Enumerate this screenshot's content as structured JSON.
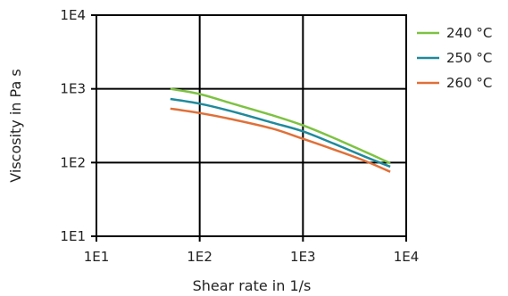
{
  "chart_data": {
    "type": "line",
    "xlabel": "Shear rate in 1/s",
    "ylabel": "Viscosity in Pa s",
    "x_scale": "log",
    "y_scale": "log",
    "xlim": [
      10,
      10000
    ],
    "ylim": [
      10,
      10000
    ],
    "x_ticks": [
      "1E1",
      "1E2",
      "1E3",
      "1E4"
    ],
    "y_ticks": [
      "1E1",
      "1E2",
      "1E3",
      "1E4"
    ],
    "grid": true,
    "legend_position": "right",
    "series": [
      {
        "name": "240 °C",
        "color": "#7dc242",
        "x": [
          52,
          100,
          200,
          500,
          1000,
          2000,
          4000,
          7000
        ],
        "y": [
          1000,
          850,
          640,
          440,
          320,
          215,
          140,
          98
        ]
      },
      {
        "name": "250 °C",
        "color": "#1f8a9c",
        "x": [
          52,
          100,
          200,
          500,
          1000,
          2000,
          4000,
          7000
        ],
        "y": [
          730,
          630,
          500,
          350,
          265,
          180,
          120,
          88
        ]
      },
      {
        "name": "260 °C",
        "color": "#e07038",
        "x": [
          52,
          100,
          200,
          500,
          1000,
          2000,
          4000,
          7000
        ],
        "y": [
          540,
          470,
          390,
          290,
          210,
          150,
          105,
          75
        ]
      }
    ]
  }
}
